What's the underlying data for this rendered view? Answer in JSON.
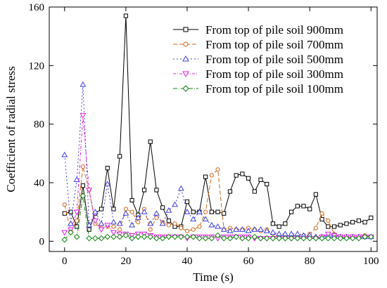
{
  "chart_data": {
    "type": "line",
    "xlabel": "Time (s)",
    "ylabel": "Coefficient of radial stress",
    "xlim": [
      -5,
      102
    ],
    "ylim": [
      -7,
      160
    ],
    "xticks": [
      0,
      20,
      40,
      60,
      80,
      100
    ],
    "yticks": [
      0,
      40,
      80,
      120,
      160
    ],
    "legend_position": "top-right",
    "grid": false,
    "series": [
      {
        "name": "From top of pile soil 900mm",
        "color": "#000000",
        "dash": "solid",
        "marker": "square",
        "x": [
          0,
          2,
          4,
          6,
          8,
          10,
          12,
          14,
          16,
          18,
          20,
          22,
          24,
          26,
          28,
          30,
          32,
          34,
          36,
          38,
          40,
          42,
          44,
          46,
          48,
          50,
          52,
          54,
          56,
          58,
          60,
          62,
          64,
          66,
          68,
          70,
          72,
          74,
          76,
          78,
          80,
          82,
          84,
          86,
          88,
          90,
          92,
          94,
          96,
          98,
          100
        ],
        "y": [
          19,
          20,
          10,
          38,
          8,
          19,
          22,
          50,
          22,
          58,
          154,
          28,
          18,
          35,
          68,
          35,
          23,
          14,
          10,
          10,
          27,
          20,
          20,
          44,
          20,
          20,
          19,
          34,
          45,
          46,
          43,
          34,
          42,
          39,
          12,
          10,
          12,
          20,
          24,
          24,
          22,
          32,
          15,
          10,
          10,
          11,
          12,
          13,
          14,
          13,
          16
        ]
      },
      {
        "name": "From top of pile soil 700mm",
        "color": "#d2691e",
        "dash": "6,3",
        "marker": "circle",
        "x": [
          0,
          2,
          4,
          6,
          8,
          10,
          12,
          14,
          16,
          18,
          20,
          22,
          24,
          26,
          28,
          30,
          32,
          34,
          36,
          38,
          40,
          42,
          44,
          46,
          48,
          50,
          52,
          54,
          56,
          58,
          60,
          62,
          64,
          66,
          68,
          70,
          72,
          74,
          76,
          78,
          80,
          82,
          84,
          86,
          88,
          90,
          92,
          94,
          96,
          98,
          100
        ],
        "y": [
          25,
          7,
          14,
          51,
          35,
          12,
          9,
          10,
          10,
          8,
          22,
          20,
          13,
          22,
          8,
          16,
          13,
          11,
          12,
          9,
          7,
          8,
          10,
          20,
          45,
          49,
          8,
          9,
          8,
          8,
          9,
          8,
          7,
          8,
          5,
          4,
          4,
          4,
          3,
          4,
          5,
          9,
          19,
          14,
          5,
          3,
          3,
          3,
          3,
          4,
          3
        ]
      },
      {
        "name": "From top of pile soil 500mm",
        "color": "#4040e0",
        "dash": "2,3",
        "marker": "triangle-up",
        "x": [
          0,
          2,
          4,
          6,
          8,
          10,
          12,
          14,
          16,
          18,
          20,
          22,
          24,
          26,
          28,
          30,
          32,
          34,
          36,
          38,
          40,
          42,
          44,
          46,
          48,
          50,
          52,
          54,
          56,
          58,
          60,
          62,
          64,
          66,
          68,
          70,
          72,
          74,
          76,
          78,
          80,
          82,
          84,
          86,
          88,
          90,
          92,
          94,
          96,
          98,
          100
        ],
        "y": [
          59,
          12,
          42,
          107,
          11,
          20,
          12,
          39,
          13,
          12,
          19,
          11,
          16,
          20,
          12,
          19,
          12,
          21,
          25,
          36,
          20,
          15,
          20,
          15,
          11,
          10,
          8,
          7,
          8,
          8,
          7,
          8,
          8,
          7,
          6,
          5,
          5,
          5,
          5,
          4,
          4,
          3,
          3,
          4,
          4,
          3,
          3,
          3,
          3,
          3,
          3
        ]
      },
      {
        "name": "From top of pile soil 300mm",
        "color": "#e020e0",
        "dash": "4,2,1,2",
        "marker": "triangle-down",
        "x": [
          0,
          2,
          4,
          6,
          8,
          10,
          12,
          14,
          16,
          18,
          20,
          22,
          24,
          26,
          28,
          30,
          32,
          34,
          36,
          38,
          40,
          42,
          44,
          46,
          48,
          50,
          52,
          54,
          56,
          58,
          60,
          62,
          64,
          66,
          68,
          70,
          72,
          74,
          76,
          78,
          80,
          82,
          84,
          86,
          88,
          90,
          92,
          94,
          96,
          98,
          100
        ],
        "y": [
          6,
          8,
          20,
          86,
          35,
          14,
          8,
          11,
          6,
          5,
          5,
          4,
          5,
          5,
          4,
          3,
          3,
          3,
          3,
          3,
          2,
          3,
          3,
          3,
          3,
          2,
          3,
          3,
          3,
          3,
          3,
          2,
          2,
          2,
          2,
          2,
          2,
          2,
          2,
          2,
          2,
          2,
          3,
          5,
          4,
          3,
          3,
          3,
          3,
          3,
          3
        ]
      },
      {
        "name": "From top of pile soil 100mm",
        "color": "#108010",
        "dash": "6,2,1,2",
        "marker": "diamond",
        "x": [
          0,
          2,
          4,
          6,
          8,
          10,
          12,
          14,
          16,
          18,
          20,
          22,
          24,
          26,
          28,
          30,
          32,
          34,
          36,
          38,
          40,
          42,
          44,
          46,
          48,
          50,
          52,
          54,
          56,
          58,
          60,
          62,
          64,
          66,
          68,
          70,
          72,
          74,
          76,
          78,
          80,
          82,
          84,
          86,
          88,
          90,
          92,
          94,
          96,
          98,
          100
        ],
        "y": [
          1,
          6,
          3,
          31,
          2,
          2,
          2,
          3,
          3,
          3,
          4,
          2,
          3,
          3,
          3,
          2,
          2,
          3,
          3,
          3,
          3,
          3,
          2,
          2,
          2,
          4,
          2,
          2,
          3,
          2,
          2,
          3,
          2,
          2,
          2,
          2,
          2,
          2,
          2,
          2,
          2,
          2,
          2,
          2,
          2,
          2,
          2,
          2,
          2,
          3,
          3
        ]
      }
    ]
  }
}
